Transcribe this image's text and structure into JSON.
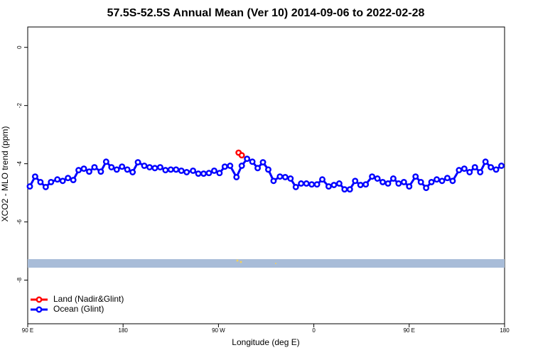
{
  "chart_data": {
    "type": "line",
    "title": "57.5S-52.5S Annual Mean (Ver 10)   2014-09-06 to 2022-02-28",
    "xlabel": "Longitude (deg E)",
    "ylabel": "XCO2 - MLO trend (ppm)",
    "xlim": [
      90,
      540
    ],
    "ylim": [
      -9.5,
      0.7
    ],
    "xticks": [
      {
        "value": 90,
        "label": "90 E"
      },
      {
        "value": 180,
        "label": "180"
      },
      {
        "value": 270,
        "label": "90 W"
      },
      {
        "value": 360,
        "label": "0"
      },
      {
        "value": 450,
        "label": "90 E"
      },
      {
        "value": 540,
        "label": "180"
      }
    ],
    "yticks": [
      0,
      -2,
      -4,
      -6,
      -8
    ],
    "legend": "bottom-left",
    "series": [
      {
        "name": "Land (Nadir&Glint)",
        "color": "#ff0000",
        "x": [
          289,
          292
        ],
        "values": [
          -3.62,
          -3.71
        ]
      },
      {
        "name": "Ocean (Glint)",
        "color": "#0000ff",
        "x": [
          92,
          97,
          102,
          107,
          112,
          118,
          123,
          128,
          133,
          138,
          143,
          148,
          153,
          159,
          164,
          169,
          174,
          179,
          184,
          189,
          194,
          200,
          205,
          210,
          215,
          220,
          225,
          230,
          235,
          240,
          246,
          251,
          256,
          261,
          266,
          271,
          276,
          281,
          287,
          292,
          297,
          302,
          307,
          312,
          317,
          322,
          328,
          333,
          338,
          343,
          348,
          353,
          358,
          363,
          368,
          374,
          379,
          384,
          389,
          394,
          399,
          404,
          409,
          415,
          420,
          425,
          430,
          435,
          440,
          445,
          450,
          456,
          461,
          466,
          471,
          476,
          481,
          486,
          491,
          497,
          502,
          507,
          512,
          517,
          522,
          527,
          532,
          537
        ],
        "values": [
          -4.78,
          -4.44,
          -4.63,
          -4.8,
          -4.63,
          -4.54,
          -4.59,
          -4.49,
          -4.56,
          -4.22,
          -4.17,
          -4.27,
          -4.12,
          -4.27,
          -3.93,
          -4.12,
          -4.2,
          -4.1,
          -4.2,
          -4.29,
          -3.95,
          -4.07,
          -4.12,
          -4.15,
          -4.12,
          -4.22,
          -4.2,
          -4.2,
          -4.24,
          -4.29,
          -4.24,
          -4.34,
          -4.34,
          -4.32,
          -4.24,
          -4.32,
          -4.1,
          -4.07,
          -4.46,
          -4.07,
          -3.83,
          -3.93,
          -4.15,
          -3.95,
          -4.2,
          -4.59,
          -4.44,
          -4.46,
          -4.51,
          -4.8,
          -4.68,
          -4.68,
          -4.71,
          -4.71,
          -4.54,
          -4.78,
          -4.73,
          -4.68,
          -4.88,
          -4.88,
          -4.59,
          -4.73,
          -4.71,
          -4.44,
          -4.51,
          -4.63,
          -4.68,
          -4.51,
          -4.68,
          -4.63,
          -4.78,
          -4.44,
          -4.63,
          -4.83,
          -4.63,
          -4.54,
          -4.59,
          -4.49,
          -4.59,
          -4.22,
          -4.17,
          -4.29,
          -4.12,
          -4.29,
          -3.93,
          -4.12,
          -4.2,
          -4.07
        ]
      }
    ]
  }
}
